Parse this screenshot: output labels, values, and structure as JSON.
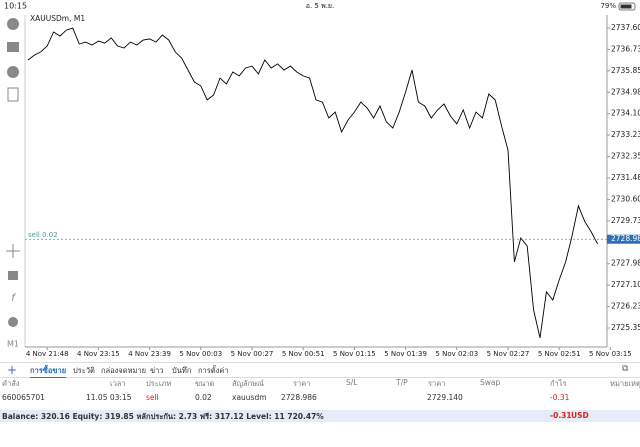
{
  "status_bar": {
    "time": "10:15",
    "date": "อ. 5 พ.ย.",
    "battery": "79%"
  },
  "chart_data": {
    "type": "line",
    "title": "XAUUSDm, M1",
    "color": "#000000",
    "grid": false,
    "categories": [
      null,
      null,
      null,
      "4 Nov 21:48",
      null,
      null,
      null,
      null,
      null,
      null,
      null,
      "4 Nov 23:15",
      null,
      null,
      null,
      null,
      null,
      null,
      null,
      "4 Nov 23:39",
      null,
      null,
      null,
      null,
      null,
      null,
      null,
      "5 Nov 00:03",
      null,
      null,
      null,
      null,
      null,
      null,
      null,
      "5 Nov 00:27",
      null,
      null,
      null,
      null,
      null,
      null,
      null,
      "5 Nov 00:51",
      null,
      null,
      null,
      null,
      null,
      null,
      null,
      "5 Nov 01:15",
      null,
      null,
      null,
      null,
      null,
      null,
      null,
      "5 Nov 01:39",
      null,
      null,
      null,
      null,
      null,
      null,
      null,
      "5 Nov 02:03",
      null,
      null,
      null,
      null,
      null,
      null,
      null,
      "5 Nov 02:27",
      null,
      null,
      null,
      null,
      null,
      null,
      null,
      "5 Nov 02:51",
      null,
      null,
      null,
      null,
      null,
      null,
      null,
      "5 Nov 03:15"
    ],
    "values": [
      2736.3,
      2736.5,
      2736.63,
      2736.87,
      2737.44,
      2737.28,
      2737.52,
      2737.6,
      2736.95,
      2737.03,
      2736.91,
      2737.07,
      2736.99,
      2737.2,
      2736.87,
      2736.79,
      2737.03,
      2736.91,
      2737.11,
      2737.16,
      2737.03,
      2737.32,
      2737.11,
      2736.63,
      2736.38,
      2735.89,
      2735.4,
      2735.24,
      2734.67,
      2734.87,
      2735.56,
      2735.32,
      2735.81,
      2735.65,
      2735.97,
      2736.05,
      2735.73,
      2736.3,
      2735.97,
      2736.14,
      2735.89,
      2736.05,
      2735.81,
      2735.65,
      2735.56,
      2734.67,
      2734.58,
      2733.93,
      2734.17,
      2733.36,
      2733.85,
      2734.17,
      2734.58,
      2734.34,
      2733.93,
      2734.42,
      2733.77,
      2733.52,
      2734.17,
      2734.99,
      2735.89,
      2734.58,
      2734.42,
      2733.93,
      2734.26,
      2734.5,
      2734.01,
      2733.69,
      2734.26,
      2733.52,
      2734.17,
      2733.93,
      2734.91,
      2734.67,
      2733.6,
      2732.62,
      2728.05,
      2729.03,
      2728.7,
      2726.09,
      2724.95,
      2726.83,
      2726.5,
      2727.32,
      2728.05,
      2729.11,
      2730.34,
      2729.7,
      2729.28,
      2728.79,
      null,
      null
    ],
    "ylim": [
      2724.662,
      2738.013
    ],
    "yticks": [
      2737.605,
      {
        "value": 2736.73,
        "label": "2736.730"
      },
      2735.855,
      {
        "value": 2734.98,
        "label": "2734.980"
      },
      2734.105,
      {
        "value": 2733.23,
        "label": "2733.230"
      },
      2732.355,
      {
        "value": 2731.48,
        "label": "2731.480"
      },
      2730.605,
      {
        "value": 2729.73,
        "label": "2729.730"
      },
      {
        "value": 2727.98,
        "label": "2727.980"
      },
      2727.105,
      {
        "value": 2726.23,
        "label": "2726.230"
      },
      2725.355
    ],
    "sell_line": {
      "label": "sell 0.02",
      "value": 2728.98,
      "value_label": "2728.980",
      "color": "#4f9a9a"
    },
    "price_box_color": "#2e6fb5"
  },
  "tabs": [
    "การซื้อขาย",
    "ประวัติ",
    "กล่องจดหมาย",
    "ข่าว",
    "บันทึก",
    "การตั้งค่า"
  ],
  "table": {
    "header": {
      "order": "คำสั่ง",
      "time": "เวลา",
      "type": "ประเภท",
      "volume": "ขนาด",
      "symbol": "สัญลักษณ์",
      "price": "ราคา",
      "sl": "S/L",
      "tp": "T/P",
      "current": "ราคา",
      "swap": "Swap",
      "profit": "กำไร",
      "comment": "หมายเหตุ"
    },
    "rows": [
      {
        "order": "660065701",
        "time": "11.05 03:15",
        "type": "sell",
        "volume": "0.02",
        "symbol": "xauusdm",
        "price": "2728.986",
        "current": "2729.140",
        "profit": "-0.31"
      }
    ]
  },
  "footer": {
    "summary": "Balance: 320.16 Equity: 319.85 หลักประกัน: 2.73 ฟรี: 317.12 Level: 11 720.47%",
    "profit": "-0.31",
    "currency": "USD"
  }
}
